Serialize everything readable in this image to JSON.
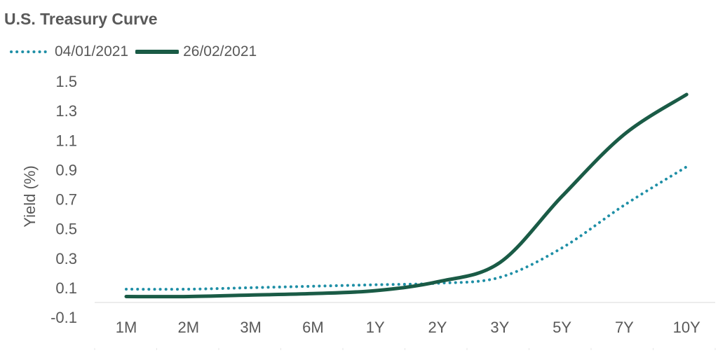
{
  "chart_data": {
    "type": "line",
    "title": "U.S. Treasury Curve",
    "xlabel": "",
    "ylabel": "Yield (%)",
    "categories": [
      "1M",
      "2M",
      "3M",
      "6M",
      "1Y",
      "2Y",
      "3Y",
      "5Y",
      "7Y",
      "10Y"
    ],
    "yticks": [
      -0.1,
      0.1,
      0.3,
      0.5,
      0.7,
      0.9,
      1.1,
      1.3,
      1.5
    ],
    "ytick_labels": [
      "-0.1",
      "0.1",
      "0.3",
      "0.5",
      "0.7",
      "0.9",
      "1.1",
      "1.3",
      "1.5"
    ],
    "ylim": [
      -0.1,
      1.5
    ],
    "grid": false,
    "legend_position": "top-left",
    "series": [
      {
        "name": "04/01/2021",
        "style": "dotted",
        "color": "#1F8FA6",
        "values": [
          0.09,
          0.09,
          0.1,
          0.11,
          0.12,
          0.13,
          0.17,
          0.37,
          0.66,
          0.92
        ]
      },
      {
        "name": "26/02/2021",
        "style": "solid",
        "color": "#1A5B46",
        "values": [
          0.04,
          0.04,
          0.05,
          0.06,
          0.08,
          0.14,
          0.27,
          0.72,
          1.14,
          1.41
        ]
      }
    ]
  }
}
